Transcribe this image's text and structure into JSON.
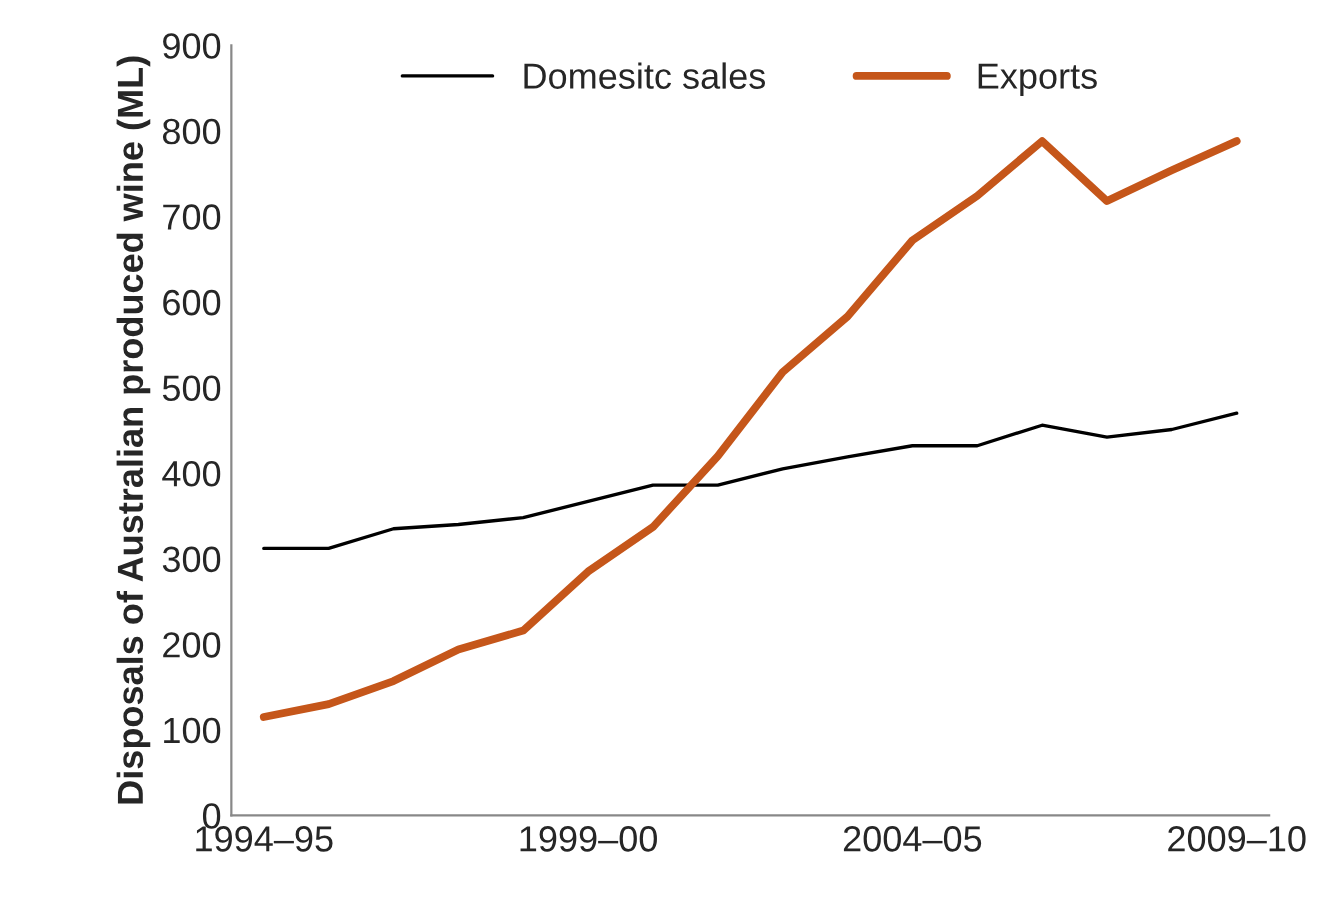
{
  "chart_data": {
    "type": "line",
    "ylabel": "Disposals of Australian produced wine (ML)",
    "categories": [
      "1994–95",
      null,
      null,
      null,
      null,
      "1999–00",
      null,
      null,
      null,
      null,
      "2004–05",
      null,
      null,
      null,
      null,
      "2009–10"
    ],
    "series": [
      {
        "name": "Domesitc sales",
        "color": "#000000",
        "values": [
          312,
          312,
          335,
          340,
          348,
          367,
          386,
          386,
          405,
          419,
          432,
          432,
          456,
          442,
          451,
          470
        ]
      },
      {
        "name": "Exports",
        "color": "#c5561a",
        "values": [
          115,
          130,
          157,
          194,
          216,
          285,
          337,
          420,
          518,
          583,
          672,
          724,
          788,
          718,
          754,
          788
        ]
      }
    ],
    "ylim": [
      0,
      900
    ],
    "yticks": [
      0,
      100,
      200,
      300,
      400,
      500,
      600,
      700,
      800,
      900
    ],
    "legend": "top",
    "grid": false
  }
}
